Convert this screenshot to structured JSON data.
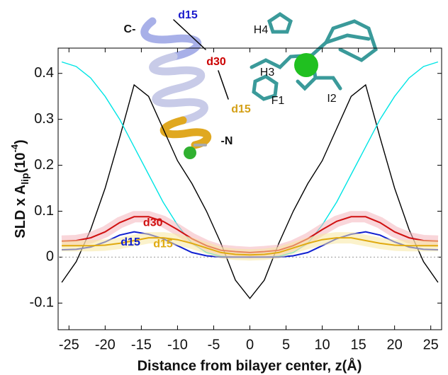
{
  "chart_data": {
    "type": "line",
    "xlabel": "Distance from bilayer center, z(Å)",
    "ylabel_parts": [
      "SLD x A",
      "lip",
      "(10",
      "-4",
      ")"
    ],
    "x": [
      -26,
      -24,
      -22,
      -20,
      -18,
      -16,
      -14,
      -12,
      -10,
      -8,
      -6,
      -4,
      -2,
      0,
      2,
      4,
      6,
      8,
      10,
      12,
      14,
      16,
      18,
      20,
      22,
      24,
      26
    ],
    "xlim": [
      -26.5,
      26.5
    ],
    "xticks": [
      -25,
      -20,
      -15,
      -10,
      -5,
      0,
      5,
      10,
      15,
      20,
      25
    ],
    "ylim": [
      -0.158,
      0.455
    ],
    "yticks": [
      -0.1,
      0,
      0.1,
      0.2,
      0.3,
      0.4
    ],
    "series": [
      {
        "color": "#000000",
        "values": [
          -0.055,
          -0.01,
          0.06,
          0.15,
          0.26,
          0.375,
          0.35,
          0.28,
          0.21,
          0.16,
          0.1,
          0.03,
          -0.05,
          -0.09,
          -0.05,
          0.03,
          0.1,
          0.16,
          0.21,
          0.28,
          0.35,
          0.375,
          0.26,
          0.15,
          0.06,
          -0.01,
          -0.055
        ]
      },
      {
        "color": "#00e5e5",
        "values": [
          0.425,
          0.415,
          0.39,
          0.35,
          0.3,
          0.24,
          0.18,
          0.12,
          0.07,
          0.03,
          0.01,
          0.002,
          0,
          0,
          0,
          0.002,
          0.01,
          0.03,
          0.07,
          0.12,
          0.18,
          0.24,
          0.3,
          0.35,
          0.39,
          0.415,
          0.425
        ]
      },
      {
        "name": "d30",
        "color": "#d01010",
        "band": "#f4b4bc",
        "values": [
          0.035,
          0.036,
          0.042,
          0.055,
          0.075,
          0.088,
          0.088,
          0.078,
          0.06,
          0.04,
          0.025,
          0.015,
          0.012,
          0.01,
          0.012,
          0.015,
          0.025,
          0.04,
          0.06,
          0.078,
          0.088,
          0.088,
          0.075,
          0.055,
          0.042,
          0.036,
          0.035
        ]
      },
      {
        "name": "d15",
        "color": "#1020d0",
        "values": [
          0.016,
          0.017,
          0.022,
          0.033,
          0.048,
          0.055,
          0.05,
          0.04,
          0.025,
          0.01,
          0.003,
          0,
          0,
          0,
          0,
          0,
          0.003,
          0.01,
          0.025,
          0.04,
          0.05,
          0.055,
          0.048,
          0.033,
          0.022,
          0.017,
          0.016
        ]
      },
      {
        "name": "d15",
        "color": "#e0aa10",
        "band": "#f8e8a0",
        "values": [
          0.025,
          0.025,
          0.025,
          0.026,
          0.03,
          0.036,
          0.042,
          0.042,
          0.038,
          0.03,
          0.02,
          0.01,
          0.006,
          0.005,
          0.006,
          0.01,
          0.02,
          0.03,
          0.038,
          0.042,
          0.042,
          0.036,
          0.03,
          0.026,
          0.025,
          0.025,
          0.025
        ]
      }
    ]
  },
  "inset_labels": [
    "C-",
    "d15",
    "d30",
    "d15",
    "-N",
    "H4",
    "H3",
    "F1",
    "I2"
  ]
}
